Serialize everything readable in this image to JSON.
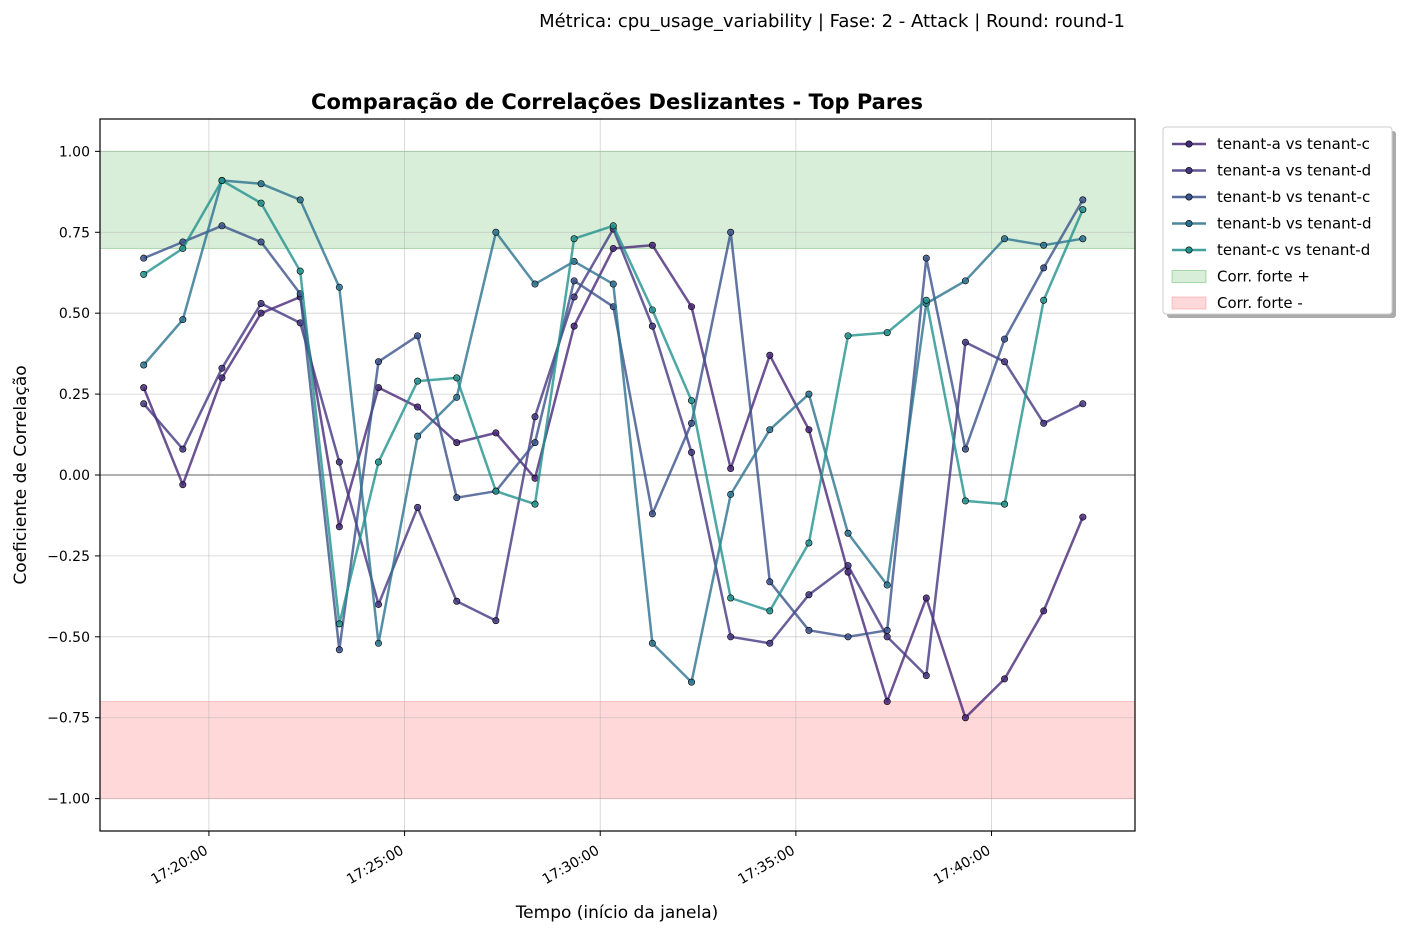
{
  "chart_data": {
    "type": "line",
    "suptitle": "Métrica: cpu_usage_variability | Fase: 2 - Attack | Round: round-1",
    "title": "Comparação de Correlações Deslizantes - Top Pares",
    "xlabel": "Tempo (início da janela)",
    "ylabel": "Coeficiente de Correlação",
    "ylim": [
      -1.1,
      1.1
    ],
    "yticks": [
      1.0,
      0.75,
      0.5,
      0.25,
      0.0,
      -0.25,
      -0.5,
      -0.75,
      -1.0
    ],
    "ytick_labels": [
      "1.00",
      "0.75",
      "0.50",
      "0.25",
      "0.00",
      "−0.25",
      "−0.50",
      "−0.75",
      "−1.00"
    ],
    "xlim": [
      "17:17:13",
      "17:43:40"
    ],
    "xticks": [
      "17:20:00",
      "17:25:00",
      "17:30:00",
      "17:35:00",
      "17:40:00"
    ],
    "grid": true,
    "legend_position": "outside-right",
    "bands": [
      {
        "label": "Corr. forte +",
        "from": 0.7,
        "to": 1.0,
        "color": "#2ca02c"
      },
      {
        "label": "Corr. forte -",
        "from": -1.0,
        "to": -0.7,
        "color": "#ff6b6b"
      }
    ],
    "x": [
      "17:18:20",
      "17:19:20",
      "17:20:20",
      "17:21:20",
      "17:22:20",
      "17:23:20",
      "17:24:20",
      "17:25:20",
      "17:26:20",
      "17:27:20",
      "17:28:20",
      "17:29:20",
      "17:30:20",
      "17:31:20",
      "17:32:20",
      "17:33:20",
      "17:34:20",
      "17:35:20",
      "17:36:20",
      "17:37:20",
      "17:38:20",
      "17:39:20",
      "17:40:20",
      "17:41:20",
      "17:42:20"
    ],
    "series": [
      {
        "name": "tenant-a vs tenant-c",
        "color": "#482878",
        "values": [
          0.27,
          -0.03,
          0.3,
          0.5,
          0.55,
          -0.16,
          0.27,
          0.21,
          0.1,
          0.13,
          -0.01,
          0.46,
          0.7,
          0.71,
          0.52,
          0.02,
          0.37,
          0.14,
          -0.3,
          -0.7,
          -0.38,
          -0.75,
          -0.63,
          -0.42,
          -0.13
        ]
      },
      {
        "name": "tenant-a vs tenant-d",
        "color": "#453781",
        "values": [
          0.22,
          0.08,
          0.33,
          0.53,
          0.47,
          0.04,
          -0.4,
          -0.1,
          -0.39,
          -0.45,
          0.18,
          0.55,
          0.76,
          0.46,
          0.07,
          -0.5,
          -0.52,
          -0.37,
          -0.28,
          -0.5,
          -0.62,
          0.41,
          0.35,
          0.16,
          0.22
        ]
      },
      {
        "name": "tenant-b vs tenant-c",
        "color": "#3b528b",
        "values": [
          0.67,
          0.72,
          0.77,
          0.72,
          0.56,
          -0.54,
          0.35,
          0.43,
          -0.07,
          -0.05,
          0.1,
          0.6,
          0.52,
          -0.12,
          0.16,
          0.75,
          -0.33,
          -0.48,
          -0.5,
          -0.48,
          0.67,
          0.08,
          0.42,
          0.64,
          0.85
        ]
      },
      {
        "name": "tenant-b vs tenant-d",
        "color": "#2c728e",
        "values": [
          0.34,
          0.48,
          0.91,
          0.9,
          0.85,
          0.58,
          -0.52,
          0.12,
          0.24,
          0.75,
          0.59,
          0.66,
          0.59,
          -0.52,
          -0.64,
          -0.06,
          0.14,
          0.25,
          -0.18,
          -0.34,
          0.53,
          0.6,
          0.73,
          0.71,
          0.73
        ]
      },
      {
        "name": "tenant-c vs tenant-d",
        "color": "#21918c",
        "values": [
          0.62,
          0.7,
          0.91,
          0.84,
          0.63,
          -0.46,
          0.04,
          0.29,
          0.3,
          -0.05,
          -0.09,
          0.73,
          0.77,
          0.51,
          0.23,
          -0.38,
          -0.42,
          -0.21,
          0.43,
          0.44,
          0.54,
          -0.08,
          -0.09,
          0.54,
          0.82
        ]
      }
    ]
  }
}
